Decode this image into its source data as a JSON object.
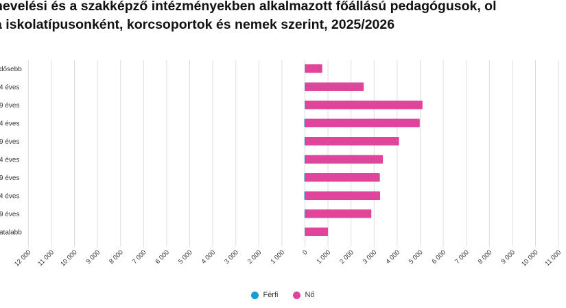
{
  "title_lines": [
    "nevelési és a szakképző intézményekben alkalmazott főállású pedagógusok, ol",
    "a iskolatípusonként, korcsoportok és nemek szerint, 2025/2026"
  ],
  "colors": {
    "ferfi": "#1a9ad6",
    "no": "#e0449b",
    "grid": "#dcdcdc"
  },
  "chart_data": {
    "type": "bar",
    "orientation": "horizontal",
    "title": "nevelési és a szakképző intézményekben alkalmazott főállású pedagógusok, ol a iskolatípusonként, korcsoportok és nemek szerint, 2025/2026",
    "categories": [
      "dősebb",
      "4 éves",
      "9 éves",
      "4 éves",
      "9 éves",
      "4 éves",
      "9 éves",
      "4 éves",
      "9 éves",
      "atalabb"
    ],
    "series": [
      {
        "name": "Férfi",
        "values": [
          -10,
          -15,
          -15,
          -30,
          -20,
          -20,
          -30,
          -30,
          -20,
          -15
        ]
      },
      {
        "name": "Nő",
        "values": [
          750,
          2550,
          5100,
          4980,
          4080,
          3380,
          3250,
          3260,
          2880,
          1000
        ]
      }
    ],
    "xlim": [
      -12000,
      12000
    ],
    "x_ticks": [
      -12000,
      -11000,
      -10000,
      -9000,
      -8000,
      -7000,
      -6000,
      -5000,
      -4000,
      -3000,
      -2000,
      -1000,
      0,
      1000,
      2000,
      3000,
      4000,
      5000,
      6000,
      7000,
      8000,
      9000,
      10000,
      11000,
      12000
    ],
    "x_tick_labels": [
      "12 000",
      "11 000",
      "10 000",
      "9 000",
      "8 000",
      "7 000",
      "6 000",
      "5 000",
      "4 000",
      "3 000",
      "2 000",
      "1 000",
      "0",
      "1 000",
      "2 000",
      "3 000",
      "4 000",
      "5 000",
      "6 000",
      "7 000",
      "8 000",
      "9 000",
      "10 000",
      "11 000",
      "12 000"
    ],
    "grid": true,
    "legend": "bottom-center"
  }
}
